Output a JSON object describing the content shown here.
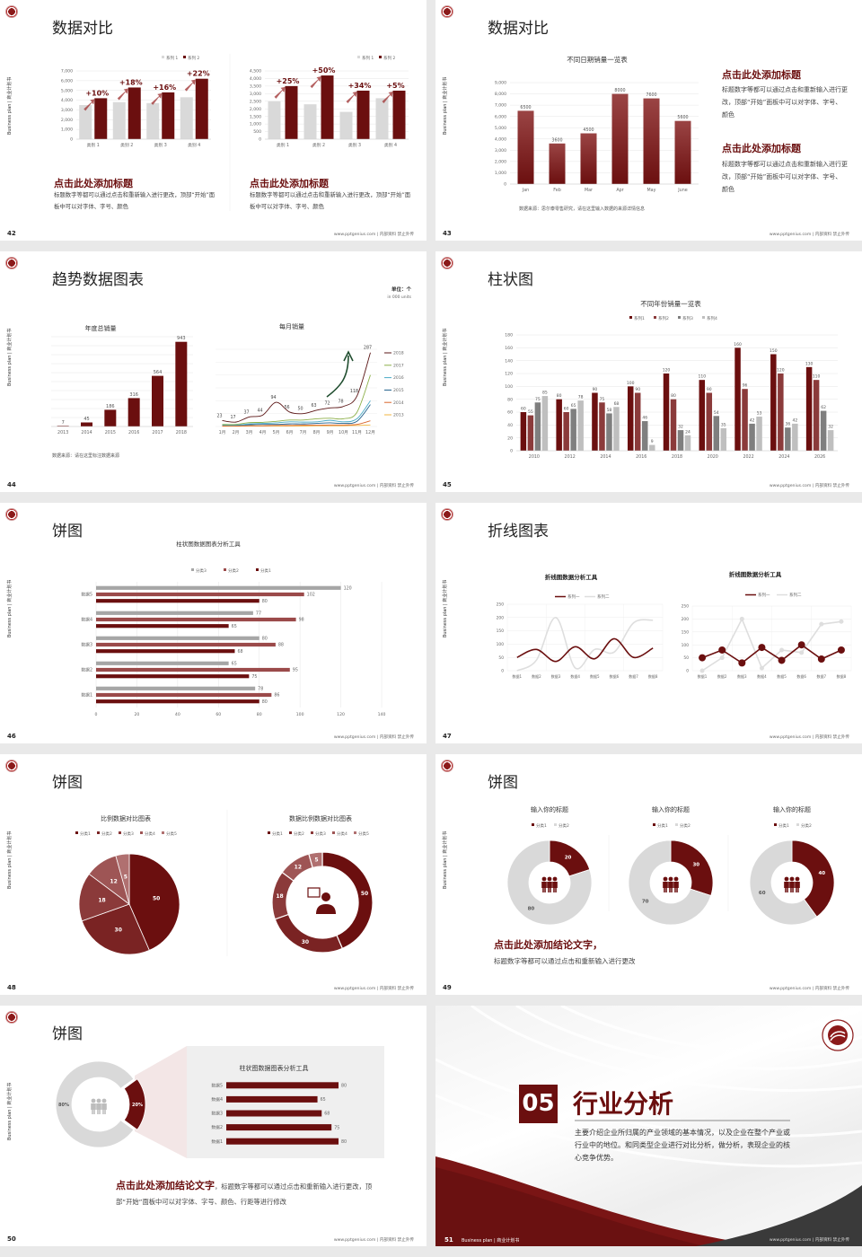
{
  "deck": {
    "side_label": "Business plan | 商业计划书",
    "footer": "www.pptgenius.com | 内部资料 禁止外传"
  },
  "slides": [
    {
      "page": "42",
      "title": "数据对比",
      "blocks": [
        {
          "heading": "点击此处添加标题",
          "body": "标题数字等都可以通过点击和重新输入进行更改，顶部“开始”面板中可以对字体、字号、颜色"
        },
        {
          "heading": "点击此处添加标题",
          "body": "标题数字等都可以通过点击和重新输入进行更改，顶部“开始”面板中可以对字体、字号、颜色"
        }
      ]
    },
    {
      "page": "43",
      "title": "数据对比",
      "source": "数据来源：思尔泰零售研究，请在这里输入数据的来源详情信息",
      "blocks": [
        {
          "heading": "点击此处添加标题",
          "body": "标题数字等都可以通过点击和重新输入进行更改，顶部“开始”面板中可以对字体、字号、颜色"
        },
        {
          "heading": "点击此处添加标题",
          "body": "标题数字等都可以通过点击和重新输入进行更改，顶部“开始”面板中可以对字体、字号、颜色"
        }
      ]
    },
    {
      "page": "44",
      "title": "趋势数据图表",
      "unit": "单位：个",
      "unit_en": "in 000 units",
      "source": "数据来源：请在这里标注数据来源"
    },
    {
      "page": "45",
      "title": "柱状图"
    },
    {
      "page": "46",
      "title": "饼图"
    },
    {
      "page": "47",
      "title": "折线图表"
    },
    {
      "page": "48",
      "title": "饼图"
    },
    {
      "page": "49",
      "title": "饼图",
      "conclusion": "点击此处添加结论文字，",
      "body": "标题数字等都可以通过点击和重新输入进行更改"
    },
    {
      "page": "50",
      "title": "饼图",
      "conclusion": "点击此处添加结论文字",
      "body": "，标题数字等都可以通过点击和重新输入进行更改，顶部“开始”面板中可以对字体、字号、颜色、行距等进行修改"
    },
    {
      "page": "51",
      "number": "05",
      "title": "行业分析",
      "body": "主要介绍企业所归属的产业领域的基本情况，以及企业在整个产业或行业中的地位。和同类型企业进行对比分析，做分析，表现企业的核心竞争优势。",
      "footer_left": "Business plan | 商业计划书"
    }
  ],
  "chart_data": [
    {
      "id": "s42-left",
      "type": "bar",
      "categories": [
        "类别 1",
        "类别 2",
        "类别 3",
        "类别 4"
      ],
      "series": [
        {
          "name": "系列 1",
          "values": [
            3500,
            3800,
            3700,
            4300
          ],
          "color": "#d9d9d9"
        },
        {
          "name": "系列 2",
          "values": [
            4200,
            5300,
            4800,
            6200
          ],
          "color": "#6b0f0f"
        }
      ],
      "ylim": [
        0,
        7000
      ],
      "ystep": 1000,
      "annotations": [
        "+10%",
        "+18%",
        "+16%",
        "+22%"
      ],
      "legend": "top-right",
      "grid": true
    },
    {
      "id": "s42-right",
      "type": "bar",
      "categories": [
        "类别 1",
        "类别 2",
        "类别 3",
        "类别 4"
      ],
      "series": [
        {
          "name": "系列 1",
          "values": [
            2500,
            2300,
            1800,
            2700
          ],
          "color": "#d9d9d9"
        },
        {
          "name": "系列 2",
          "values": [
            3500,
            4200,
            3200,
            3200
          ],
          "color": "#6b0f0f"
        }
      ],
      "ylim": [
        0,
        4500
      ],
      "ystep": 500,
      "annotations": [
        "+25%",
        "+50%",
        "+34%",
        "+5%"
      ],
      "legend": "top-right",
      "grid": true
    },
    {
      "id": "s43",
      "type": "bar",
      "title": "不同日期销量一览表",
      "categories": [
        "Jan",
        "Feb",
        "Mar",
        "Apr",
        "May",
        "June"
      ],
      "series": [
        {
          "values": [
            6500,
            3600,
            4500,
            8000,
            7600,
            5600
          ],
          "color": "#7a1515"
        }
      ],
      "ylim": [
        0,
        9000
      ],
      "ystep": 1000,
      "data_labels": true,
      "grid": true
    },
    {
      "id": "s44-left",
      "type": "bar",
      "title": "年度总销量",
      "categories": [
        "2013",
        "2014",
        "2015",
        "2016",
        "2017",
        "2018"
      ],
      "series": [
        {
          "values": [
            7,
            45,
            186,
            316,
            564,
            943
          ],
          "color": "#6b0f0f"
        }
      ],
      "ylim": [
        0,
        1000
      ],
      "ystep": 100,
      "data_labels": true,
      "grid": true
    },
    {
      "id": "s44-right",
      "type": "line",
      "title": "每月销量",
      "categories": [
        "1月",
        "2月",
        "3月",
        "4月",
        "5月",
        "6月",
        "7月",
        "8月",
        "9月",
        "10月",
        "11月",
        "12月"
      ],
      "series": [
        {
          "name": "2018",
          "values": [
            23,
            17,
            37,
            44,
            94,
            56,
            50,
            63,
            72,
            78,
            118,
            287
          ],
          "color": "#5a1414",
          "data_labels": true
        },
        {
          "name": "2017",
          "values": [
            8,
            8,
            15,
            16,
            20,
            25,
            25,
            30,
            32,
            30,
            55,
            200
          ],
          "color": "#8db04a"
        },
        {
          "name": "2016",
          "values": [
            5,
            5,
            10,
            12,
            14,
            18,
            17,
            18,
            24,
            18,
            30,
            100
          ],
          "color": "#4bacc6"
        },
        {
          "name": "2015",
          "values": [
            5,
            5,
            7,
            8,
            8,
            10,
            10,
            12,
            14,
            12,
            20,
            85
          ],
          "color": "#1f5f8b"
        },
        {
          "name": "2014",
          "values": [
            2,
            2,
            3,
            3,
            4,
            4,
            5,
            5,
            6,
            6,
            8,
            22
          ],
          "color": "#d9662b"
        },
        {
          "name": "2013",
          "values": [
            1,
            1,
            2,
            2,
            2,
            2,
            2,
            3,
            3,
            3,
            4,
            6
          ],
          "color": "#f2b540"
        }
      ],
      "ylim": [
        0,
        300
      ],
      "ystep": 50,
      "legend": "right",
      "grid": true,
      "smooth": true
    },
    {
      "id": "s45",
      "type": "bar",
      "title": "不同年份销量一览表",
      "categories": [
        "2010",
        "2012",
        "2014",
        "2016",
        "2018",
        "2020",
        "2022",
        "2024",
        "2026"
      ],
      "series": [
        {
          "name": "系列1",
          "values": [
            60,
            80,
            90,
            100,
            120,
            110,
            160,
            150,
            130
          ],
          "color": "#6b0f0f"
        },
        {
          "name": "系列2",
          "values": [
            55,
            60,
            75,
            90,
            80,
            90,
            96,
            120,
            110
          ],
          "color": "#8b3b3b"
        },
        {
          "name": "系列3",
          "values": [
            75,
            65,
            58,
            46,
            32,
            54,
            42,
            36,
            62
          ],
          "color": "#7f7f7f"
        },
        {
          "name": "系列4",
          "values": [
            85,
            78,
            68,
            9,
            24,
            35,
            53,
            42,
            32
          ],
          "color": "#bfbfbf"
        }
      ],
      "ylim": [
        0,
        180
      ],
      "ystep": 20,
      "data_labels": true,
      "legend": "top",
      "grid": true
    },
    {
      "id": "s46",
      "type": "bar-horizontal",
      "title": "柱状图数据图表分析工具",
      "categories": [
        "数据1",
        "数据2",
        "数据3",
        "数据4",
        "数据5"
      ],
      "series": [
        {
          "name": "分类1",
          "values": [
            80,
            75,
            68,
            65,
            80
          ],
          "color": "#6b0f0f"
        },
        {
          "name": "分类2",
          "values": [
            86,
            95,
            88,
            98,
            102
          ],
          "color": "#9b4a4a"
        },
        {
          "name": "分类3",
          "values": [
            78,
            65,
            80,
            77,
            120
          ],
          "color": "#a6a6a6"
        }
      ],
      "xlim": [
        0,
        140
      ],
      "xstep": 20,
      "data_labels": true,
      "legend": "top",
      "grid": true
    },
    {
      "id": "s47-left",
      "type": "line",
      "title": "折线图数据分析工具",
      "categories": [
        "数据1",
        "数据2",
        "数据3",
        "数据4",
        "数据5",
        "数据6",
        "数据7",
        "数据8"
      ],
      "series": [
        {
          "name": "系列一",
          "values": [
            50,
            80,
            35,
            90,
            45,
            120,
            50,
            85
          ],
          "color": "#6b0f0f"
        },
        {
          "name": "系列二",
          "values": [
            0,
            40,
            200,
            10,
            80,
            70,
            180,
            190
          ],
          "color": "#dedede"
        }
      ],
      "ylim": [
        0,
        250
      ],
      "ystep": 50,
      "legend": "top",
      "grid": true,
      "smooth": true
    },
    {
      "id": "s47-right",
      "type": "line",
      "title": "折线图数据分析工具",
      "categories": [
        "数据1",
        "数据2",
        "数据3",
        "数据4",
        "数据5",
        "数据6",
        "数据7",
        "数据8"
      ],
      "series": [
        {
          "name": "系列一",
          "values": [
            50,
            80,
            30,
            90,
            40,
            100,
            45,
            80
          ],
          "color": "#6b0f0f"
        },
        {
          "name": "系列二",
          "values": [
            0,
            50,
            200,
            10,
            80,
            70,
            180,
            190
          ],
          "color": "#dedede"
        }
      ],
      "ylim": [
        0,
        250
      ],
      "ystep": 50,
      "legend": "top",
      "grid": true,
      "markers": true
    },
    {
      "id": "s48-pie",
      "type": "pie",
      "title": "比例数据对比图表",
      "categories": [
        "分类1",
        "分类2",
        "分类3",
        "分类4",
        "分类5"
      ],
      "values": [
        50,
        30,
        18,
        12,
        5
      ],
      "colors": [
        "#6b0f0f",
        "#7a2323",
        "#8b3a3a",
        "#9e5555",
        "#b07070"
      ],
      "legend": "top"
    },
    {
      "id": "s48-donut",
      "type": "pie",
      "donut": true,
      "title": "数据比例数据对比图表",
      "categories": [
        "分类1",
        "分类2",
        "分类3",
        "分类4",
        "分类5"
      ],
      "values": [
        50,
        30,
        18,
        12,
        5
      ],
      "colors": [
        "#6b0f0f",
        "#7a2323",
        "#8b3a3a",
        "#9e5555",
        "#b07070"
      ],
      "legend": "top"
    },
    {
      "id": "s49-a",
      "type": "pie",
      "donut": true,
      "title": "输入你的标题",
      "categories": [
        "分类1",
        "分类2"
      ],
      "values": [
        20,
        80
      ],
      "colors": [
        "#6b0f0f",
        "#d9d9d9"
      ],
      "legend": "top"
    },
    {
      "id": "s49-b",
      "type": "pie",
      "donut": true,
      "title": "输入你的标题",
      "categories": [
        "分类1",
        "分类2"
      ],
      "values": [
        30,
        70
      ],
      "colors": [
        "#6b0f0f",
        "#d9d9d9"
      ],
      "legend": "top"
    },
    {
      "id": "s49-c",
      "type": "pie",
      "donut": true,
      "title": "输入你的标题",
      "categories": [
        "分类1",
        "分类2"
      ],
      "values": [
        40,
        60
      ],
      "colors": [
        "#6b0f0f",
        "#d9d9d9"
      ],
      "legend": "top"
    },
    {
      "id": "s50-donut",
      "type": "pie",
      "donut": true,
      "values": [
        20,
        80
      ],
      "labels": [
        "20%",
        "80%"
      ],
      "colors": [
        "#6b0f0f",
        "#d9d9d9"
      ]
    },
    {
      "id": "s50-bars",
      "type": "bar-horizontal",
      "title": "柱状图数据图表分析工具",
      "categories": [
        "数据1",
        "数据2",
        "数据3",
        "数据4",
        "数据5"
      ],
      "series": [
        {
          "values": [
            80,
            75,
            68,
            65,
            80
          ],
          "color": "#6b0f0f"
        }
      ],
      "xlim": [
        0,
        80
      ],
      "data_labels": true
    }
  ]
}
